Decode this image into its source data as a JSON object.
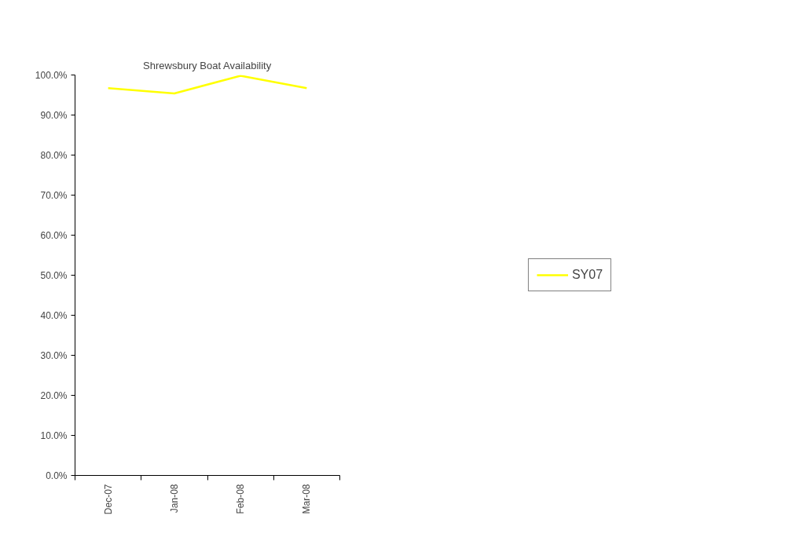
{
  "chart_data": {
    "type": "line",
    "title": "Shrewsbury Boat Availability",
    "categories": [
      "Dec-07",
      "Jan-08",
      "Feb-08",
      "Mar-08"
    ],
    "series": [
      {
        "name": "SY07",
        "color": "#ffff00",
        "values": [
          96.7,
          95.4,
          99.8,
          96.7
        ]
      }
    ],
    "ylim": [
      0,
      100
    ],
    "yticks": [
      {
        "value": 0,
        "label": "0.0%"
      },
      {
        "value": 10,
        "label": "10.0%"
      },
      {
        "value": 20,
        "label": "20.0%"
      },
      {
        "value": 30,
        "label": "30.0%"
      },
      {
        "value": 40,
        "label": "40.0%"
      },
      {
        "value": 50,
        "label": "50.0%"
      },
      {
        "value": 60,
        "label": "60.0%"
      },
      {
        "value": 70,
        "label": "70.0%"
      },
      {
        "value": 80,
        "label": "80.0%"
      },
      {
        "value": 90,
        "label": "90.0%"
      },
      {
        "value": 100,
        "label": "100.0%"
      }
    ],
    "grid": false,
    "legend": "right",
    "marker": "none",
    "line_style": "solid"
  }
}
